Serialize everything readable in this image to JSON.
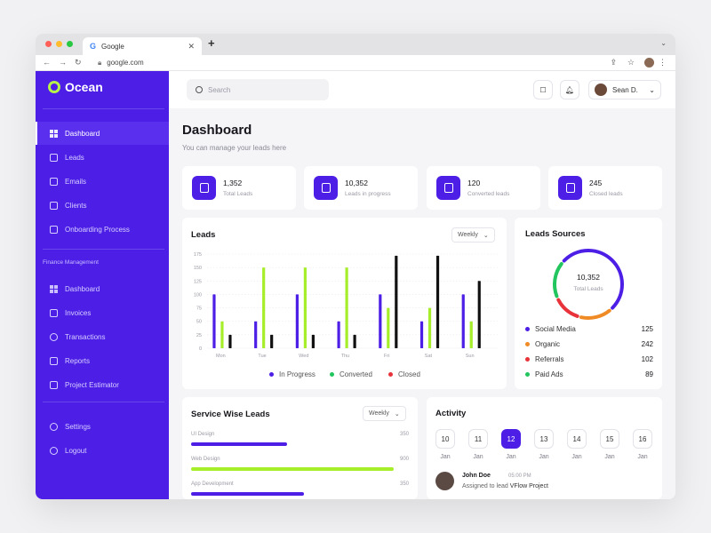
{
  "browser": {
    "tab_title": "Google",
    "tab_favicon": "G",
    "url": "google.com"
  },
  "sidebar": {
    "brand": "Ocean",
    "items": [
      {
        "label": "Dashboard",
        "icon": "grid-icon",
        "active": true
      },
      {
        "label": "Leads",
        "icon": "leads-icon"
      },
      {
        "label": "Emails",
        "icon": "mail-icon"
      },
      {
        "label": "Clients",
        "icon": "clients-icon"
      },
      {
        "label": "Onboarding Process",
        "icon": "onboarding-icon"
      }
    ],
    "section_label": "Finance Management",
    "finance_items": [
      {
        "label": "Dashboard",
        "icon": "grid-icon"
      },
      {
        "label": "Invoices",
        "icon": "invoice-icon"
      },
      {
        "label": "Transactions",
        "icon": "transactions-icon"
      },
      {
        "label": "Reports",
        "icon": "reports-icon"
      },
      {
        "label": "Project Estimator",
        "icon": "estimator-icon"
      }
    ],
    "bottom_items": [
      {
        "label": "Settings",
        "icon": "gear-icon"
      },
      {
        "label": "Logout",
        "icon": "logout-icon"
      }
    ]
  },
  "header": {
    "search_placeholder": "Search",
    "user_name": "Sean D."
  },
  "page": {
    "title": "Dashboard",
    "subtitle": "You can manage your leads here"
  },
  "stats": [
    {
      "value": "1,352",
      "label": "Total Leads"
    },
    {
      "value": "10,352",
      "label": "Leads in progress"
    },
    {
      "value": "120",
      "label": "Converted leads"
    },
    {
      "value": "245",
      "label": "Closed leads"
    }
  ],
  "leads_card": {
    "title": "Leads",
    "period": "Weekly"
  },
  "sources_card": {
    "title": "Leads Sources",
    "total": "10,352",
    "total_label": "Total Leads",
    "rows": [
      {
        "label": "Social Media",
        "value": "125",
        "color": "#4c1ee6"
      },
      {
        "label": "Organic",
        "value": "242",
        "color": "#f08a24"
      },
      {
        "label": "Referrals",
        "value": "102",
        "color": "#e8333a"
      },
      {
        "label": "Paid Ads",
        "value": "89",
        "color": "#22c55e"
      }
    ]
  },
  "service_card": {
    "title": "Service Wise Leads",
    "period": "Weekly",
    "rows": [
      {
        "label": "UI Design",
        "value": "350",
        "fraction": 0.44,
        "color": "#4c1ee6"
      },
      {
        "label": "Web Design",
        "value": "900",
        "fraction": 0.93,
        "color": "#a6ee2a"
      },
      {
        "label": "App Development",
        "value": "350",
        "fraction": 0.52,
        "color": "#4c1ee6"
      }
    ]
  },
  "activity_card": {
    "title": "Activity",
    "days": [
      {
        "day": "10",
        "month": "Jan"
      },
      {
        "day": "11",
        "month": "Jan"
      },
      {
        "day": "12",
        "month": "Jan",
        "selected": true
      },
      {
        "day": "13",
        "month": "Jan"
      },
      {
        "day": "14",
        "month": "Jan"
      },
      {
        "day": "15",
        "month": "Jan"
      },
      {
        "day": "16",
        "month": "Jan"
      }
    ],
    "entry": {
      "name": "John Doe",
      "time": "05:00 PM",
      "text": "Assigned to lead",
      "target": "VFlow Project"
    }
  },
  "colors": {
    "primary": "#4c1ee6",
    "lime": "#a6ee2a",
    "black": "#111111"
  },
  "chart_data": {
    "type": "bar",
    "categories": [
      "Mon",
      "Tue",
      "Wed",
      "Thu",
      "Fri",
      "Sat",
      "Sun"
    ],
    "ylim": [
      0,
      175
    ],
    "yticks": [
      0,
      25,
      50,
      75,
      100,
      125,
      150,
      175
    ],
    "grid": true,
    "legend_position": "bottom",
    "series": [
      {
        "name": "In Progress",
        "color": "#4c1ee6",
        "values": [
          100,
          50,
          100,
          50,
          100,
          50,
          100
        ]
      },
      {
        "name": "Converted",
        "color": "#a6ee2a",
        "values": [
          50,
          150,
          150,
          150,
          75,
          75,
          50
        ]
      },
      {
        "name": "Closed",
        "color": "#111111",
        "values": [
          25,
          25,
          25,
          25,
          172,
          172,
          125
        ]
      }
    ],
    "legend_dot_colors": [
      "#4c1ee6",
      "#22c55e",
      "#e8333a"
    ]
  }
}
